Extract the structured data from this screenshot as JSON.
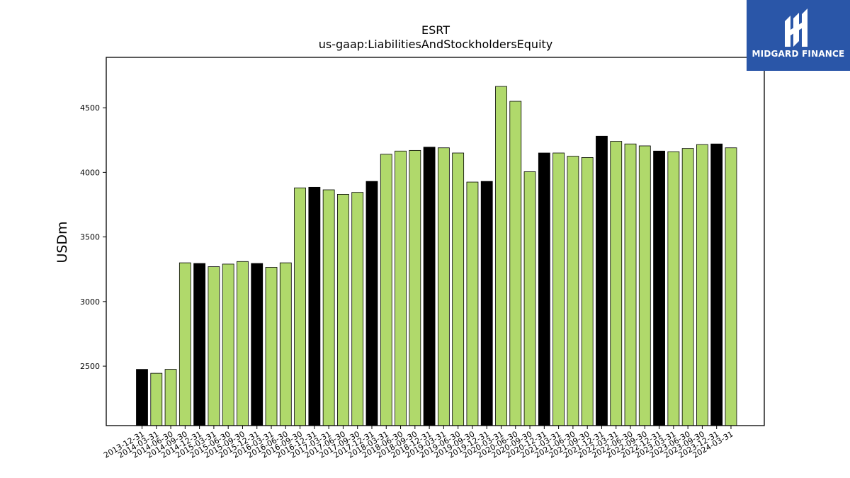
{
  "chart_data": {
    "type": "bar",
    "title": "ESRT",
    "subtitle": "us-gaap:LiabilitiesAndStockholdersEquity",
    "xlabel": "",
    "ylabel": "USDm",
    "ylim": [
      2040,
      4890
    ],
    "yticks": [
      2500,
      3000,
      3500,
      4000,
      4500
    ],
    "grid": false,
    "legend": "none",
    "colors": {
      "quarter": "#b0d96b",
      "year_end": "#000000",
      "edge": "#000000"
    },
    "categories": [
      "2013-12-31",
      "2014-03-31",
      "2014-06-30",
      "2014-09-30",
      "2014-12-31",
      "2015-03-31",
      "2015-06-30",
      "2015-09-30",
      "2015-12-31",
      "2016-03-31",
      "2016-06-30",
      "2016-09-30",
      "2016-12-31",
      "2017-03-31",
      "2017-06-30",
      "2017-09-30",
      "2017-12-31",
      "2018-03-31",
      "2018-06-30",
      "2018-09-30",
      "2018-12-31",
      "2019-03-31",
      "2019-06-30",
      "2019-09-30",
      "2019-12-31",
      "2020-03-31",
      "2020-06-30",
      "2020-09-30",
      "2020-12-31",
      "2021-03-31",
      "2021-06-30",
      "2021-09-30",
      "2021-12-31",
      "2022-03-31",
      "2022-06-30",
      "2022-09-30",
      "2022-12-31",
      "2023-03-31",
      "2023-06-30",
      "2023-09-30",
      "2023-12-31",
      "2024-03-31"
    ],
    "values": [
      2475,
      2445,
      2475,
      3300,
      3295,
      3270,
      3290,
      3310,
      3295,
      3265,
      3300,
      3880,
      3885,
      3865,
      3830,
      3845,
      3930,
      4140,
      4165,
      4170,
      4195,
      4190,
      4150,
      3925,
      3930,
      4665,
      4550,
      4005,
      4150,
      4150,
      4125,
      4115,
      4280,
      4240,
      4220,
      4205,
      4165,
      4160,
      4185,
      4215,
      4220,
      4190
    ],
    "year_end": [
      true,
      false,
      false,
      false,
      true,
      false,
      false,
      false,
      true,
      false,
      false,
      false,
      true,
      false,
      false,
      false,
      true,
      false,
      false,
      false,
      true,
      false,
      false,
      false,
      true,
      false,
      false,
      false,
      true,
      false,
      false,
      false,
      true,
      false,
      false,
      false,
      true,
      false,
      false,
      false,
      true,
      false
    ]
  },
  "logo": {
    "text": "MIDGARD FINANCE",
    "icon": "midgard-logo-icon",
    "bg": "#2a56a8"
  }
}
